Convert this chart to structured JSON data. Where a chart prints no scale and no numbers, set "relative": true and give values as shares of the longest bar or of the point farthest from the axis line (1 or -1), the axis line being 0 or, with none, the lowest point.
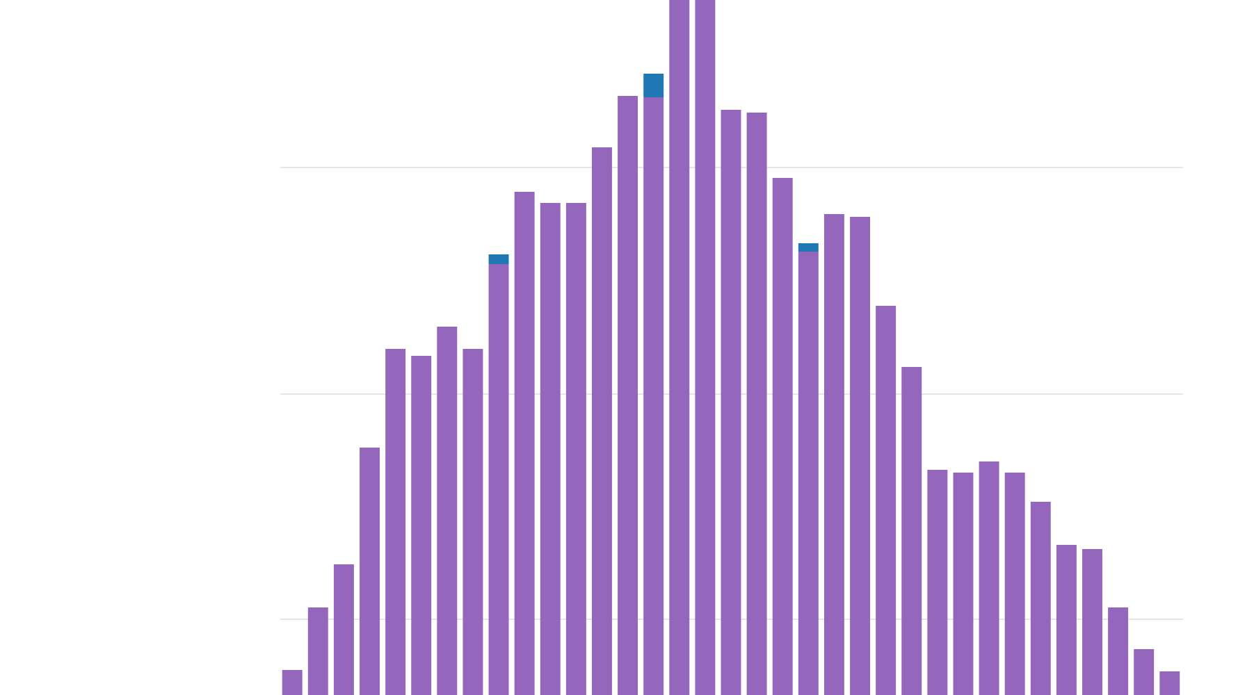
{
  "chart_data": {
    "type": "bar",
    "relative": true,
    "stacked": true,
    "grid": "y",
    "categories": [
      null,
      null,
      null,
      null,
      null,
      null,
      null,
      null,
      null,
      null,
      null,
      null,
      null,
      null,
      null,
      null,
      null,
      null,
      null,
      null,
      null,
      null,
      null,
      null,
      null,
      null,
      null,
      null,
      null,
      null,
      null,
      null,
      null,
      null,
      null
    ],
    "series": [
      {
        "color": "#9467bd",
        "values": [
          0.036,
          0.126,
          0.188,
          0.356,
          0.498,
          0.488,
          0.53,
          0.498,
          0.62,
          0.724,
          0.708,
          0.708,
          0.788,
          0.862,
          0.86,
          1,
          1,
          0.842,
          0.838,
          0.744,
          0.638,
          0.692,
          0.688,
          0.56,
          0.472,
          0.324,
          0.32,
          0.336,
          0.32,
          0.278,
          0.216,
          0.21,
          0.126,
          0.066,
          0.034
        ]
      },
      {
        "color": "#1f77b4",
        "values": [
          null,
          null,
          null,
          null,
          null,
          null,
          null,
          null,
          0.014,
          null,
          null,
          null,
          null,
          null,
          0.034,
          null,
          null,
          null,
          null,
          null,
          0.012,
          null,
          null,
          null,
          null,
          null,
          null,
          null,
          null,
          null,
          null,
          null,
          null,
          null,
          null
        ]
      }
    ]
  }
}
